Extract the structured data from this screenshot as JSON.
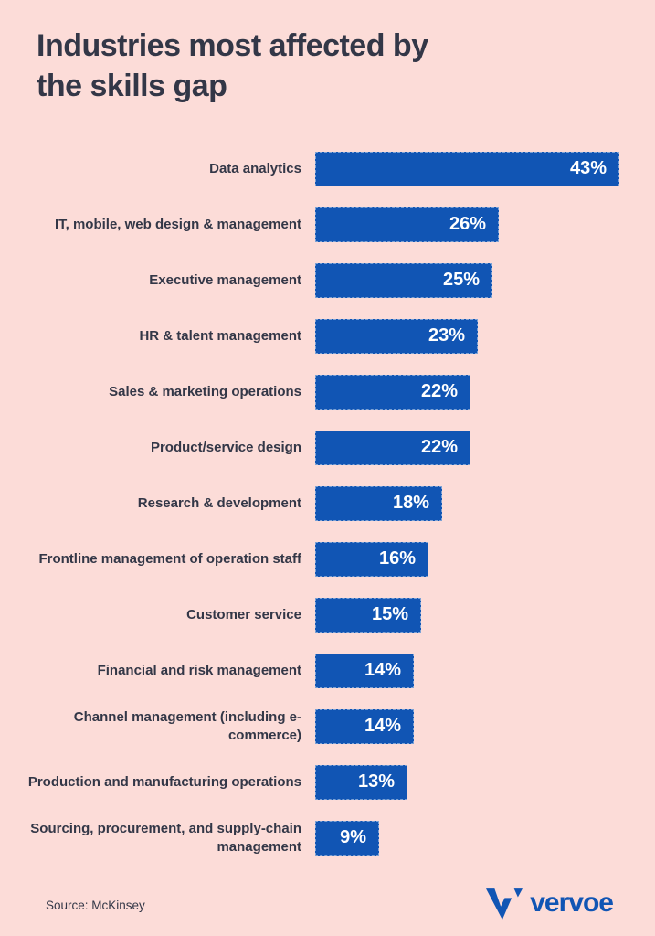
{
  "title": "Industries most affected by the skills gap",
  "title_lines": [
    "Industries most affected by",
    "the skills gap"
  ],
  "source": "Source: McKinsey",
  "brand": {
    "name": "vervoe",
    "icon": "vervoe-v-icon"
  },
  "colors": {
    "background": "#fcdcd8",
    "bar": "#1155b4",
    "text": "#333747",
    "value_text": "#ffffff"
  },
  "chart_data": {
    "type": "bar",
    "orientation": "horizontal",
    "title": "Industries most affected by the skills gap",
    "categories": [
      "Data analytics",
      "IT, mobile, web design & management",
      "Executive management",
      "HR & talent management",
      "Sales & marketing operations",
      "Product/service design",
      "Research & development",
      "Frontline management of operation staff",
      "Customer service",
      "Financial and risk management",
      "Channel management (including e-commerce)",
      "Production and manufacturing operations",
      "Sourcing, procurement, and supply-chain management"
    ],
    "values": [
      43,
      26,
      25,
      23,
      22,
      22,
      18,
      16,
      15,
      14,
      14,
      13,
      9
    ],
    "value_labels": [
      "43%",
      "26%",
      "25%",
      "23%",
      "22%",
      "22%",
      "18%",
      "16%",
      "15%",
      "14%",
      "14%",
      "13%",
      "9%"
    ],
    "unit": "%",
    "xlim": [
      0,
      45
    ],
    "grid": false,
    "legend": false,
    "value_label_position": "inside-right",
    "source": "McKinsey"
  }
}
